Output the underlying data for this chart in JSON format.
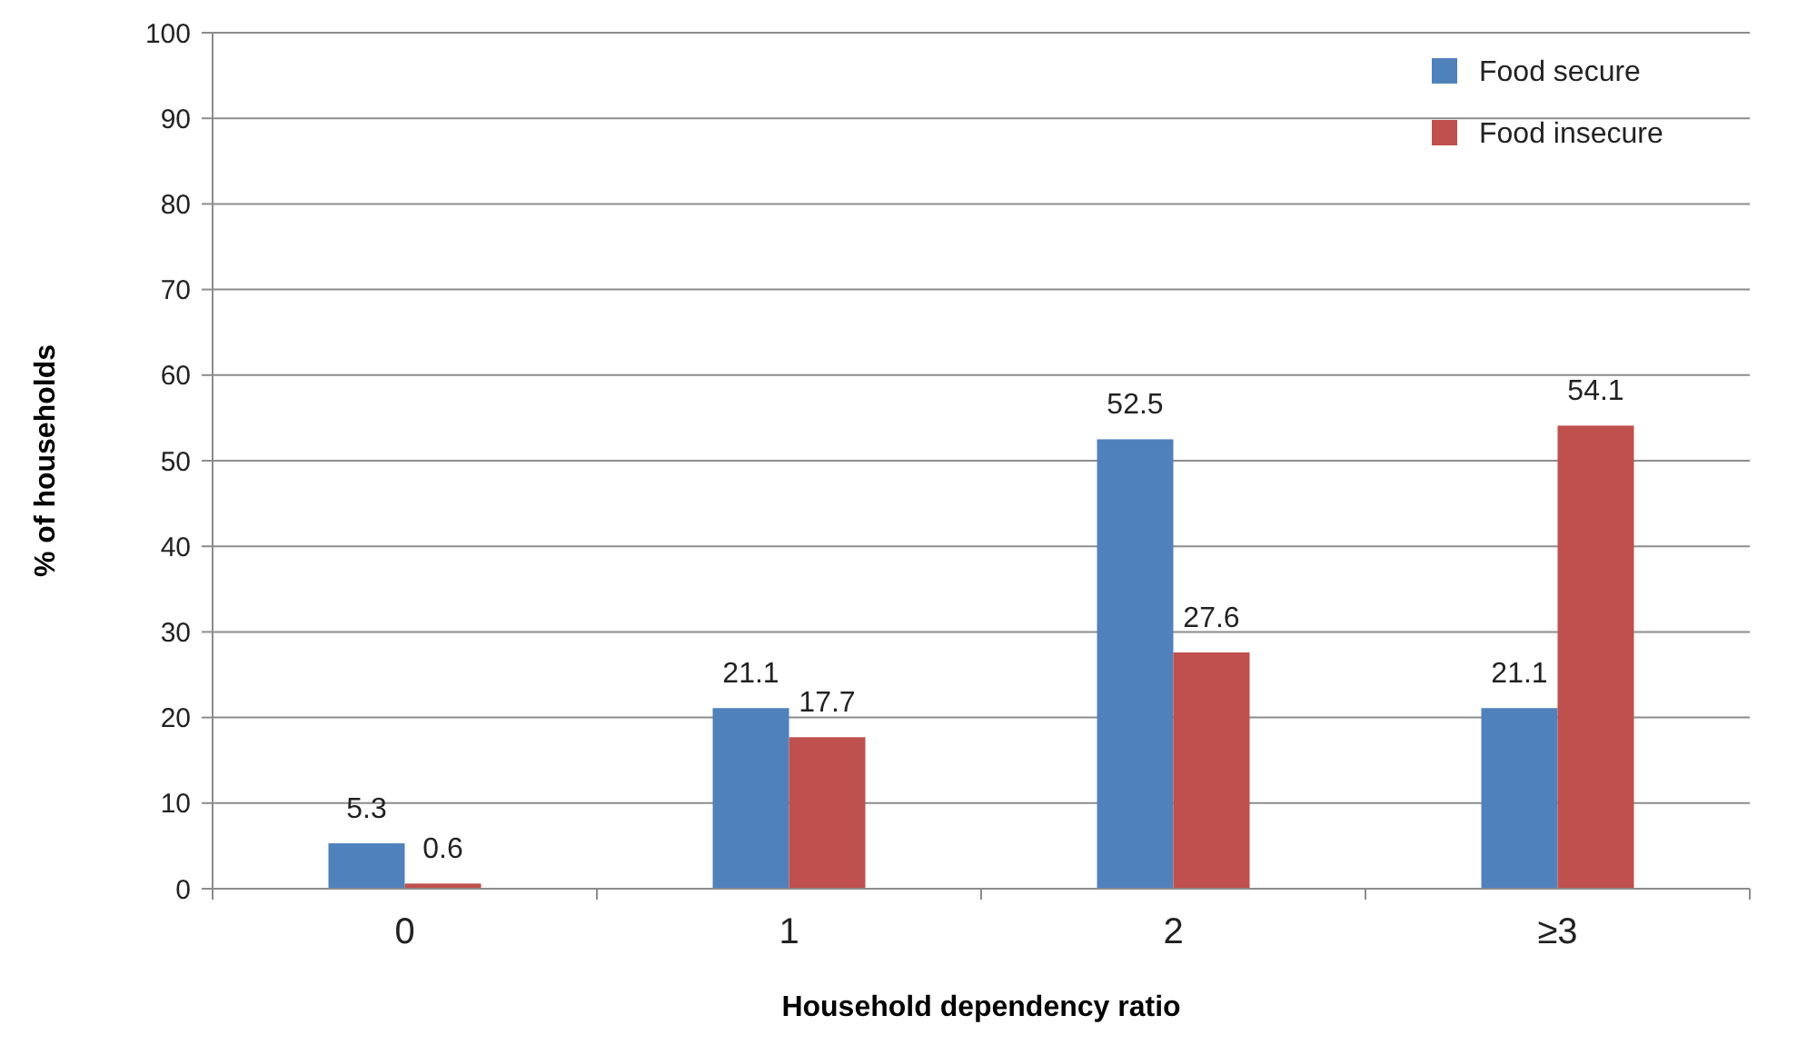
{
  "chart_data": {
    "type": "bar",
    "xlabel": "Household dependency ratio",
    "ylabel": "% of households",
    "categories": [
      "0",
      "1",
      "2",
      "≥3"
    ],
    "series": [
      {
        "name": "Food secure",
        "color": "#4f81bd",
        "values": [
          5.3,
          21.1,
          52.5,
          21.1
        ]
      },
      {
        "name": "Food insecure",
        "color": "#c0504d",
        "values": [
          0.6,
          17.7,
          27.6,
          54.1
        ]
      }
    ],
    "ylim": [
      0,
      100
    ],
    "yticks": [
      0,
      10,
      20,
      30,
      40,
      50,
      60,
      70,
      80,
      90,
      100
    ],
    "grid": "y",
    "legend": "top right",
    "data_labels": true
  }
}
